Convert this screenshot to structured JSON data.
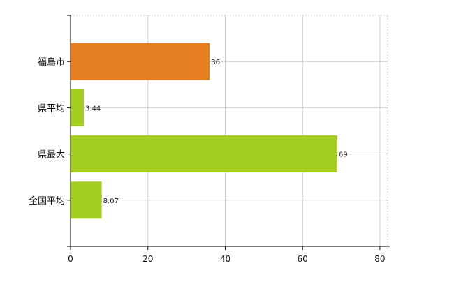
{
  "chart_data": {
    "type": "bar",
    "orientation": "horizontal",
    "categories": [
      "福島市",
      "県平均",
      "県最大",
      "全国平均"
    ],
    "values": [
      36,
      3.44,
      69,
      8.07
    ],
    "value_labels": [
      "36",
      "3.44",
      "69",
      "8.07"
    ],
    "bar_colors": [
      "#e67e22",
      "#a2cc21",
      "#a2cc21",
      "#a2cc21"
    ],
    "xlim": [
      0,
      82
    ],
    "x_ticks": [
      0,
      20,
      40,
      60,
      80
    ],
    "x_tick_labels": [
      "0",
      "20",
      "40",
      "60",
      "80"
    ],
    "grid": true,
    "legend": "none"
  },
  "colors": {
    "axis": "#000000",
    "grid": "#cccccc",
    "highlight": "#e67e22",
    "default": "#a2cc21"
  }
}
